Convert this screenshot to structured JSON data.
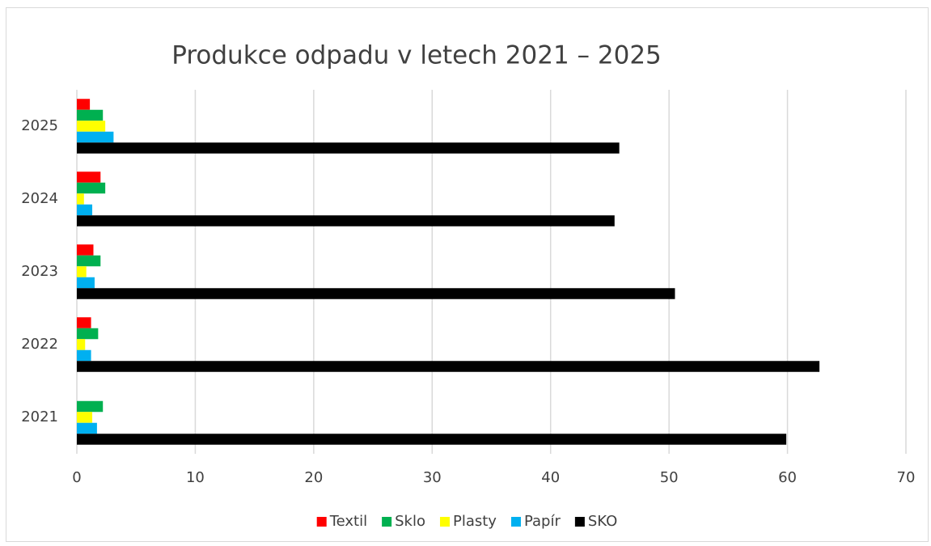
{
  "chart_data": {
    "type": "barh",
    "title": "Produkce odpadu v letech 2021 – 2025",
    "categories": [
      "2021",
      "2022",
      "2023",
      "2024",
      "2025"
    ],
    "series": [
      {
        "name": "Textil",
        "color": "#ff0000",
        "values": [
          0,
          1.2,
          1.4,
          2.0,
          1.1
        ]
      },
      {
        "name": "Sklo",
        "color": "#00b050",
        "values": [
          2.2,
          1.8,
          2.0,
          2.4,
          2.2
        ]
      },
      {
        "name": "Plasty",
        "color": "#ffff00",
        "values": [
          1.3,
          0.7,
          0.8,
          0.6,
          2.4
        ]
      },
      {
        "name": "Papír",
        "color": "#00b0f0",
        "values": [
          1.7,
          1.2,
          1.5,
          1.3,
          3.1
        ]
      },
      {
        "name": "SKO",
        "color": "#000000",
        "values": [
          59.9,
          62.7,
          50.5,
          45.4,
          45.8
        ]
      }
    ],
    "xlim": [
      0,
      70
    ],
    "xticks": [
      0,
      10,
      20,
      30,
      40,
      50,
      60,
      70
    ],
    "grid": true,
    "legend": "bottom"
  }
}
